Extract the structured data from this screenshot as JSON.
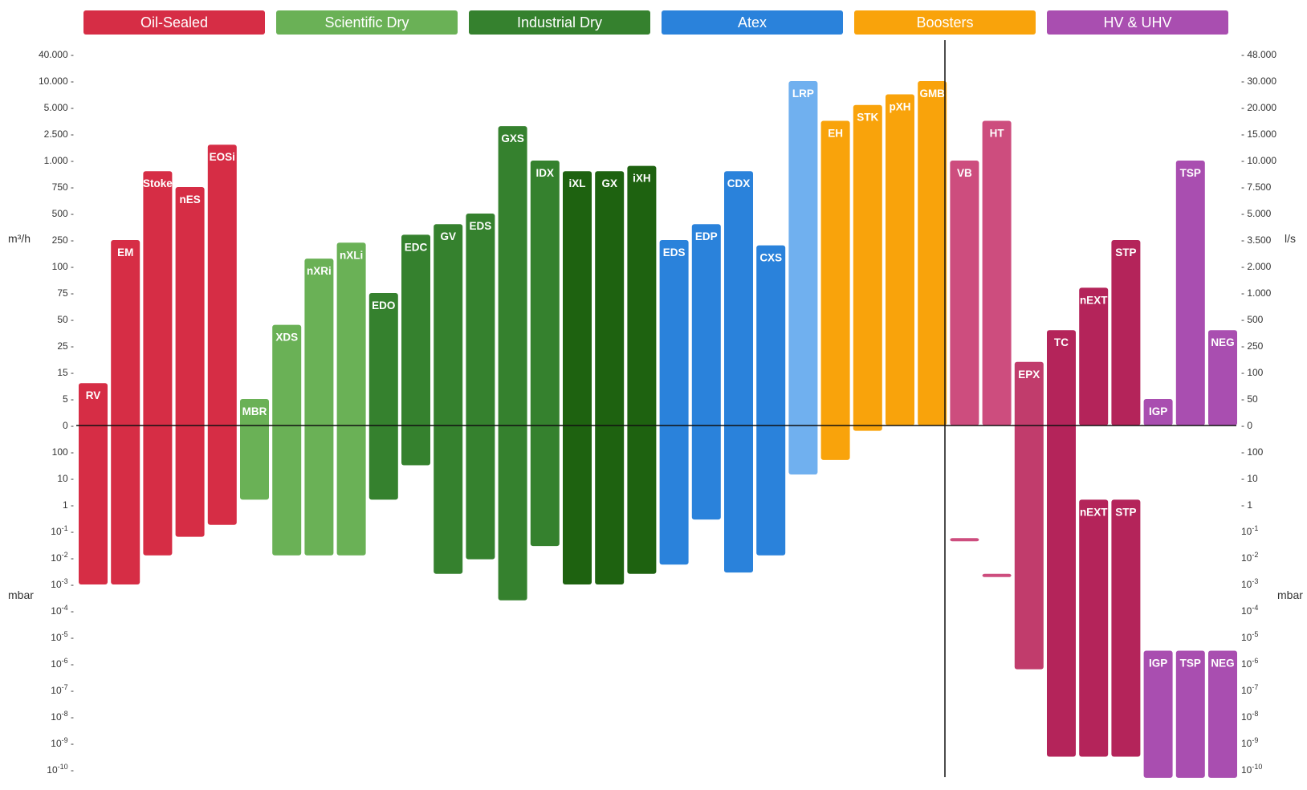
{
  "chart_data": {
    "type": "bar",
    "title": "",
    "categories": [
      {
        "name": "Oil-Sealed",
        "color": "#d62d45"
      },
      {
        "name": "Scientific Dry",
        "color": "#6ab156"
      },
      {
        "name": "Industrial Dry",
        "color": "#35812e"
      },
      {
        "name": "Atex",
        "color": "#2a82db"
      },
      {
        "name": "Boosters",
        "color": "#f9a30b"
      },
      {
        "name": "HV & UHV",
        "color": "#a94eb0"
      }
    ],
    "left_axis": {
      "top_label": "m³/h",
      "top_ticks": [
        "40.000",
        "10.000",
        "5.000",
        "2.500",
        "1.000",
        "750",
        "500",
        "250",
        "100",
        "75",
        "50",
        "25",
        "15",
        "5",
        "0"
      ],
      "bottom_label": "mbar",
      "bottom_ticks": [
        "100",
        "10",
        "1",
        "10^-1",
        "10^-2",
        "10^-3",
        "10^-4",
        "10^-5",
        "10^-6",
        "10^-7",
        "10^-8",
        "10^-9",
        "10^-10"
      ]
    },
    "right_axis": {
      "top_label": "l/s",
      "top_ticks": [
        "48.000",
        "30.000",
        "20.000",
        "15.000",
        "10.000",
        "7.500",
        "5.000",
        "3.500",
        "2.000",
        "1.000",
        "500",
        "250",
        "100",
        "50",
        "0"
      ],
      "bottom_label": "mbar",
      "bottom_ticks": [
        "100",
        "10",
        "1",
        "10^-1",
        "10^-2",
        "10^-3",
        "10^-4",
        "10^-5",
        "10^-6",
        "10^-7",
        "10^-8",
        "10^-9",
        "10^-10"
      ]
    },
    "note": "Top bars: pumping speed on the tick scale (index 0 = '0' at baseline ... 14 = top tick, fractional). Bottom bars: ultimate pressure on the pressure tick scale (index 0 = '0' baseline, 1 = '100' ... 13 = '10^-10'). Pumps to the right of the divider read speed on the l/s axis.",
    "pumps": [
      {
        "label": "RV",
        "category": "Oil-Sealed",
        "color": "#d62d45",
        "speed_level": 1.6,
        "pressure_level": 6.0
      },
      {
        "label": "EM",
        "category": "Oil-Sealed",
        "color": "#d62d45",
        "speed_level": 7.0,
        "pressure_level": 6.0
      },
      {
        "label": "Stoke",
        "category": "Oil-Sealed",
        "color": "#d62d45",
        "speed_level": 9.6,
        "pressure_level": 4.9
      },
      {
        "label": "nES",
        "category": "Oil-Sealed",
        "color": "#d62d45",
        "speed_level": 9.0,
        "pressure_level": 4.2
      },
      {
        "label": "EOSi",
        "category": "Oil-Sealed",
        "color": "#d62d45",
        "speed_level": 10.6,
        "pressure_level": 3.75
      },
      {
        "label": "MBR",
        "category": "Scientific Dry",
        "color": "#6ab156",
        "speed_level": 1.0,
        "pressure_level": 2.8
      },
      {
        "label": "XDS",
        "category": "Scientific Dry",
        "color": "#6ab156",
        "speed_level": 3.8,
        "pressure_level": 4.9
      },
      {
        "label": "nXRi",
        "category": "Scientific Dry",
        "color": "#6ab156",
        "speed_level": 6.3,
        "pressure_level": 4.9
      },
      {
        "label": "nXLi",
        "category": "Scientific Dry",
        "color": "#6ab156",
        "speed_level": 6.9,
        "pressure_level": 4.9
      },
      {
        "label": "EDO",
        "category": "Industrial Dry",
        "color": "#35812e",
        "speed_level": 5.0,
        "pressure_level": 2.8
      },
      {
        "label": "EDC",
        "category": "Industrial Dry",
        "color": "#35812e",
        "speed_level": 7.2,
        "pressure_level": 1.5
      },
      {
        "label": "GV",
        "category": "Industrial Dry",
        "color": "#35812e",
        "speed_level": 7.6,
        "pressure_level": 5.6
      },
      {
        "label": "EDS",
        "category": "Industrial Dry",
        "color": "#35812e",
        "speed_level": 8.0,
        "pressure_level": 5.05
      },
      {
        "label": "GXS",
        "category": "Industrial Dry",
        "color": "#35812e",
        "speed_level": 11.3,
        "pressure_level": 6.6
      },
      {
        "label": "IDX",
        "category": "Industrial Dry",
        "color": "#35812e",
        "speed_level": 10.0,
        "pressure_level": 4.55
      },
      {
        "label": "iXL",
        "category": "Industrial Dry",
        "color": "#1e6210",
        "speed_level": 9.6,
        "pressure_level": 6.0
      },
      {
        "label": "GX",
        "category": "Industrial Dry",
        "color": "#1e6210",
        "speed_level": 9.6,
        "pressure_level": 6.0
      },
      {
        "label": "iXH",
        "category": "Industrial Dry",
        "color": "#1e6210",
        "speed_level": 9.8,
        "pressure_level": 5.6
      },
      {
        "label": "EDS",
        "category": "Atex",
        "color": "#2a82db",
        "speed_level": 7.0,
        "pressure_level": 5.25
      },
      {
        "label": "EDP",
        "category": "Atex",
        "color": "#2a82db",
        "speed_level": 7.6,
        "pressure_level": 3.55
      },
      {
        "label": "CDX",
        "category": "Atex",
        "color": "#2a82db",
        "speed_level": 9.6,
        "pressure_level": 5.55
      },
      {
        "label": "CXS",
        "category": "Atex",
        "color": "#2a82db",
        "speed_level": 6.8,
        "pressure_level": 4.9
      },
      {
        "label": "LRP",
        "category": "Atex",
        "color": "#70b0ef",
        "speed_level": 13.0,
        "pressure_level": 1.85
      },
      {
        "label": "EH",
        "category": "Boosters",
        "color": "#f9a30b",
        "speed_level": 11.5,
        "pressure_level": 1.3
      },
      {
        "label": "STK",
        "category": "Boosters",
        "color": "#f9a30b",
        "speed_level": 12.1,
        "pressure_level": 0.2
      },
      {
        "label": "pXH",
        "category": "Boosters",
        "color": "#f9a30b",
        "speed_level": 12.5,
        "pressure_level": 0
      },
      {
        "label": "GMB",
        "category": "Boosters",
        "color": "#f9a30b",
        "speed_level": 13.0,
        "pressure_level": 0
      },
      {
        "label": "VB",
        "category": "HV & UHV",
        "color": "#cd4d7e",
        "speed_level": 10.0,
        "pressure_level": 0,
        "axis": "right"
      },
      {
        "label": "HT",
        "category": "HV & UHV",
        "color": "#cd4d7e",
        "speed_level": 11.5,
        "pressure_level": 0,
        "axis": "right"
      },
      {
        "label": "VB",
        "category": "HV & UHV",
        "color": "#cd4d7e",
        "speed_level": 0,
        "pressure_level": 4.2,
        "pressure_start": 4.25,
        "axis": "right"
      },
      {
        "label": "HT",
        "category": "HV & UHV",
        "color": "#cd4d7e",
        "speed_level": 0,
        "pressure_level": 5.7,
        "pressure_start": 5.6,
        "axis": "right"
      },
      {
        "label": "EPX",
        "category": "HV & UHV",
        "color": "#c13c6c",
        "speed_level": 2.4,
        "pressure_level": 9.2,
        "axis": "right"
      },
      {
        "label": "TC",
        "category": "HV & UHV",
        "color": "#b4245a",
        "speed_level": 3.6,
        "pressure_level": 12.5,
        "axis": "right"
      },
      {
        "label": "nEXT",
        "category": "HV & UHV",
        "color": "#b4245a",
        "speed_level": 5.2,
        "pressure_level": 0,
        "axis": "right"
      },
      {
        "label": "STP",
        "category": "HV & UHV",
        "color": "#b4245a",
        "speed_level": 7.0,
        "pressure_level": 0,
        "axis": "right"
      },
      {
        "label": "nEXT",
        "category": "HV & UHV",
        "color": "#b4245a",
        "speed_level": 0,
        "pressure_level": 12.5,
        "pressure_start": 2.8,
        "axis": "right"
      },
      {
        "label": "STP",
        "category": "HV & UHV",
        "color": "#b4245a",
        "speed_level": 0,
        "pressure_level": 12.5,
        "pressure_start": 2.8,
        "axis": "right"
      },
      {
        "label": "IGP",
        "category": "HV & UHV",
        "color": "#a94eb0",
        "speed_level": 1.0,
        "pressure_level": 0,
        "axis": "right"
      },
      {
        "label": "TSP",
        "category": "HV & UHV",
        "color": "#a94eb0",
        "speed_level": 10.0,
        "pressure_level": 0,
        "axis": "right"
      },
      {
        "label": "NEG",
        "category": "HV & UHV",
        "color": "#a94eb0",
        "speed_level": 3.6,
        "pressure_level": 0,
        "axis": "right"
      },
      {
        "label": "IGP",
        "category": "HV & UHV",
        "color": "#a94eb0",
        "speed_level": 0,
        "pressure_level": 13.3,
        "pressure_start": 8.5,
        "axis": "right"
      },
      {
        "label": "TSP",
        "category": "HV & UHV",
        "color": "#a94eb0",
        "speed_level": 0,
        "pressure_level": 13.3,
        "pressure_start": 8.5,
        "axis": "right"
      },
      {
        "label": "NEG",
        "category": "HV & UHV",
        "color": "#a94eb0",
        "speed_level": 0,
        "pressure_level": 13.3,
        "pressure_start": 8.5,
        "axis": "right"
      }
    ]
  }
}
